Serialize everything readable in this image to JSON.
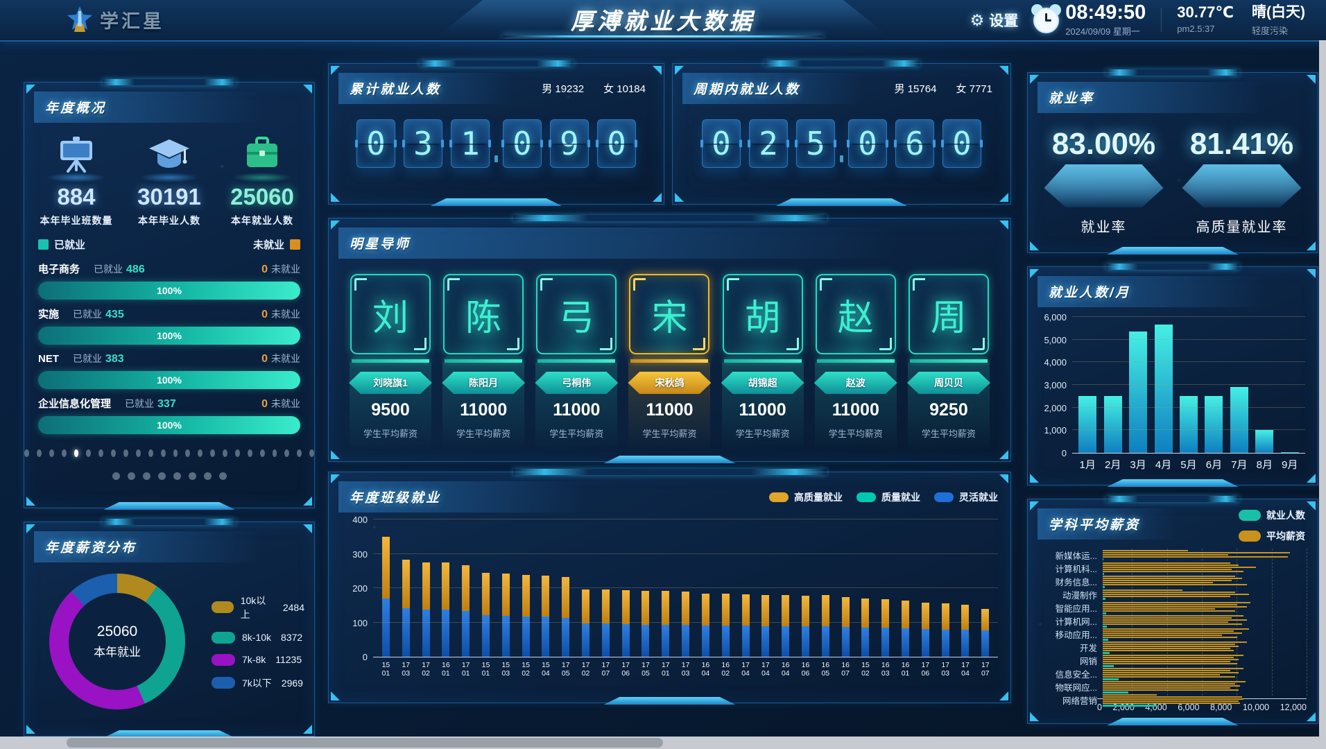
{
  "header": {
    "logo_text": "学汇星",
    "title": "厚溥就业大数据",
    "settings_label": "设置",
    "time": "08:49:50",
    "date": "2024/09/09 星期一",
    "temperature": "30.77℃",
    "pm25": "pm2.5:37",
    "weather": "晴(白天)",
    "pollution": "轻度污染"
  },
  "annual_overview": {
    "title": "年度概况",
    "stats": [
      {
        "icon": "projector-screen-icon",
        "value": "884",
        "label": "本年毕业班数量"
      },
      {
        "icon": "graduation-cap-icon",
        "value": "30191",
        "label": "本年毕业人数"
      },
      {
        "icon": "briefcase-icon",
        "value": "25060",
        "label": "本年就业人数"
      }
    ],
    "legend_employed": "已就业",
    "legend_unemployed": "未就业",
    "majors": [
      {
        "name": "电子商务",
        "employed": "486",
        "unemployed": "0",
        "percent": "100%"
      },
      {
        "name": "实施",
        "employed": "435",
        "unemployed": "0",
        "percent": "100%"
      },
      {
        "name": "NET",
        "employed": "383",
        "unemployed": "0",
        "percent": "100%"
      },
      {
        "name": "企业信息化管理",
        "employed": "337",
        "unemployed": "0",
        "percent": "100%"
      }
    ],
    "pager": {
      "row1_count": 24,
      "row1_active": 4,
      "row2_count": 8
    }
  },
  "cumulative_panel": {
    "title": "累计就业人数",
    "male_label": "男",
    "male_value": "19232",
    "female_label": "女",
    "female_value": "10184",
    "digits": "031090"
  },
  "period_panel": {
    "title": "周期内就业人数",
    "male_label": "男",
    "male_value": "15764",
    "female_label": "女",
    "female_value": "7771",
    "digits": "025060"
  },
  "mentors": {
    "title": "明星导师",
    "salary_label": "学生平均薪资",
    "cards": [
      {
        "surname": "刘",
        "name": "刘晓旗1",
        "salary": "9500",
        "highlight": false
      },
      {
        "surname": "陈",
        "name": "陈阳月",
        "salary": "11000",
        "highlight": false
      },
      {
        "surname": "弓",
        "name": "弓桐伟",
        "salary": "11000",
        "highlight": false
      },
      {
        "surname": "宋",
        "name": "宋秋鸽",
        "salary": "11000",
        "highlight": true
      },
      {
        "surname": "胡",
        "name": "胡锦超",
        "salary": "11000",
        "highlight": false
      },
      {
        "surname": "赵",
        "name": "赵波",
        "salary": "11000",
        "highlight": false
      },
      {
        "surname": "周",
        "name": "周贝贝",
        "salary": "9250",
        "highlight": false
      }
    ]
  },
  "employment_rate": {
    "title": "就业率",
    "items": [
      {
        "value": "83.00%",
        "label": "就业率"
      },
      {
        "value": "81.41%",
        "label": "高质量就业率"
      }
    ]
  },
  "chart_data": [
    {
      "id": "salary_donut",
      "type": "pie",
      "title": "年度薪资分布",
      "center_text": "25060",
      "center_label": "本年就业",
      "labels": [
        "10k以上",
        "8k-10k",
        "7k-8k",
        "7k以下"
      ],
      "values": [
        2484,
        8372,
        11235,
        2969
      ],
      "colors": [
        "#b08a1e",
        "#0fa391",
        "#9912c4",
        "#1c5fae"
      ],
      "legend_position": "right"
    },
    {
      "id": "class_employment",
      "type": "bar",
      "stacked": true,
      "title": "年度班级就业",
      "ylim": [
        0,
        400
      ],
      "yticks": [
        0,
        100,
        200,
        300,
        400
      ],
      "legend_position": "top-right",
      "categories": [
        "15 01",
        "17 03",
        "17 02",
        "16 01",
        "17 01",
        "15 01",
        "15 03",
        "15 02",
        "15 04",
        "17 05",
        "17 02",
        "17 07",
        "17 06",
        "17 05",
        "17 01",
        "17 03",
        "16 04",
        "16 02",
        "17 04",
        "17 04",
        "16 04",
        "16 06",
        "16 05",
        "16 07",
        "15 02",
        "16 03",
        "16 01",
        "17 06",
        "17 03",
        "17 04",
        "17 07"
      ],
      "series": [
        {
          "name": "高质量就业",
          "color": "#e0a52a",
          "values": [
            180,
            141,
            138,
            137,
            134,
            124,
            122,
            120,
            119,
            118,
            99,
            99,
            98,
            98,
            98,
            97,
            93,
            92,
            92,
            90,
            91,
            90,
            91,
            87,
            85,
            83,
            81,
            78,
            76,
            74,
            64
          ]
        },
        {
          "name": "质量就业",
          "color": "#00c9b1",
          "values": [
            0,
            0,
            0,
            0,
            0,
            0,
            0,
            0,
            0,
            0,
            0,
            0,
            0,
            0,
            0,
            0,
            0,
            0,
            0,
            0,
            0,
            0,
            0,
            0,
            0,
            0,
            0,
            0,
            0,
            0,
            0
          ]
        },
        {
          "name": "灵活就业",
          "color": "#1f6fd8",
          "values": [
            170,
            142,
            137,
            138,
            133,
            121,
            120,
            118,
            117,
            114,
            98,
            96,
            95,
            93,
            93,
            93,
            91,
            91,
            90,
            89,
            88,
            88,
            89,
            87,
            85,
            84,
            82,
            80,
            79,
            78,
            76
          ]
        }
      ]
    },
    {
      "id": "monthly_employment",
      "type": "bar",
      "title": "就业人数/月",
      "categories": [
        "1月",
        "2月",
        "3月",
        "4月",
        "5月",
        "6月",
        "7月",
        "8月",
        "9月"
      ],
      "values": [
        2500,
        2500,
        5350,
        5650,
        2500,
        2500,
        2900,
        1000,
        30
      ],
      "ylim": [
        0,
        6000
      ],
      "yticks": [
        0,
        1000,
        2000,
        3000,
        4000,
        5000,
        6000
      ],
      "bar_gradient": [
        "#45f0e4",
        "#0e7fc0"
      ]
    },
    {
      "id": "subject_avg_salary",
      "type": "bar-horizontal",
      "title": "学科平均薪资",
      "xlim": [
        0,
        12000
      ],
      "xticks": [
        0,
        2000,
        4000,
        6000,
        8000,
        10000,
        12000
      ],
      "legend": [
        {
          "name": "就业人数",
          "color": "#19c0a8"
        },
        {
          "name": "平均薪资",
          "color": "#c8921c"
        }
      ],
      "categories": [
        "新媒体运...",
        "计算机科...",
        "财务信息...",
        "动漫制作",
        "智能应用...",
        "计算机网...",
        "移动应用...",
        "开发",
        "网销",
        "信息安全...",
        "物联网应...",
        "网络营销"
      ],
      "salary_bars": [
        [
          5000,
          11000,
          7400,
          10900
        ],
        [
          7500,
          8000,
          9000,
          7600,
          8300
        ],
        [
          7800,
          8200,
          7600,
          6500,
          8500
        ],
        [
          4700,
          7800,
          8600,
          7500
        ],
        [
          8700,
          7900,
          8500,
          6600,
          7800
        ],
        [
          8300,
          7600,
          8500,
          7400,
          8200
        ],
        [
          8600,
          7700,
          8200,
          7000,
          7900
        ],
        [
          8500,
          7800,
          8000,
          7500,
          7700
        ],
        [
          8300,
          7700,
          8000,
          7500,
          7900
        ],
        [
          8300,
          7500,
          8000,
          6900,
          7800
        ],
        [
          8400,
          7800,
          8100,
          7500,
          8000
        ],
        [
          3200,
          8200,
          8300,
          8000,
          8100
        ]
      ],
      "employment_values": [
        60,
        90,
        120,
        160,
        210,
        260,
        320,
        420,
        640,
        950,
        1500,
        3200
      ]
    }
  ]
}
